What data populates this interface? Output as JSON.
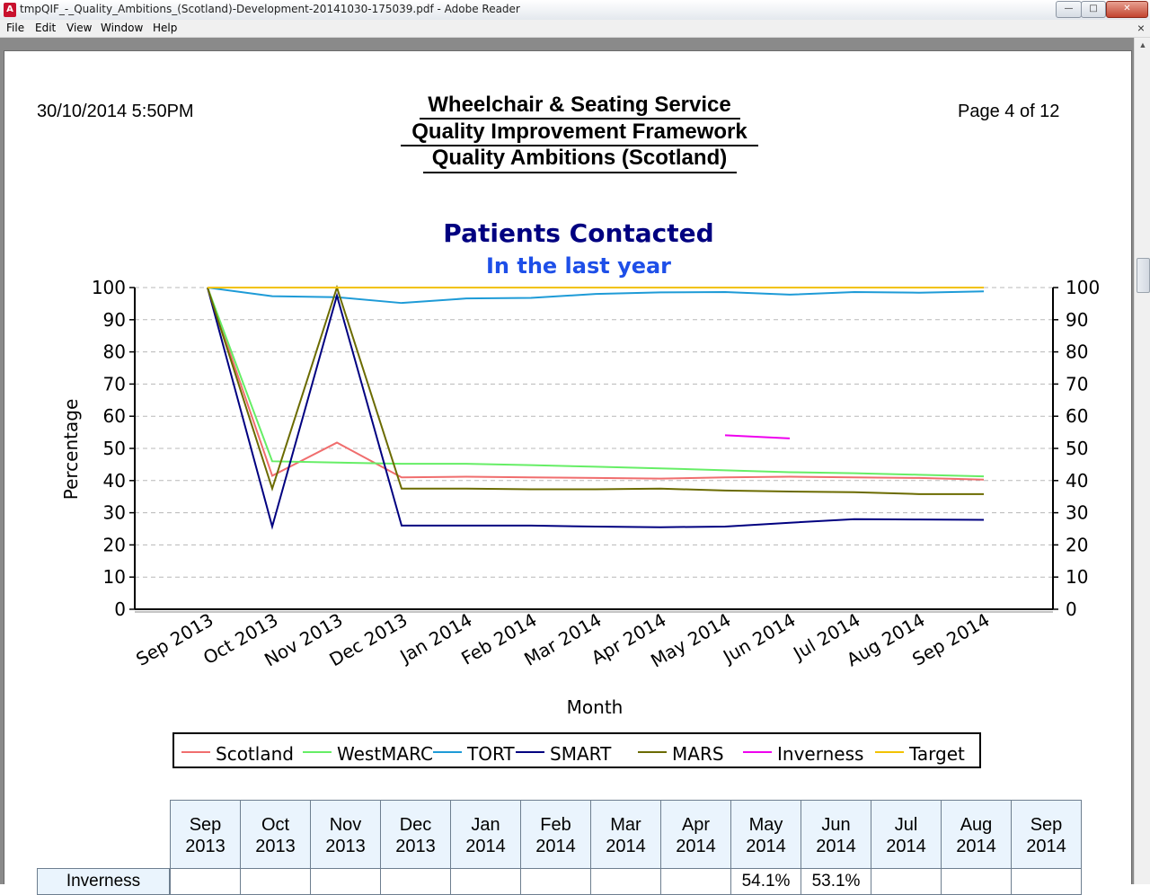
{
  "window": {
    "title": "tmpQIF_-_Quality_Ambitions_(Scotland)-Development-20141030-175039.pdf - Adobe Reader",
    "buttons": {
      "minimize": "—",
      "maximize": "□",
      "close": "✕"
    }
  },
  "menu": {
    "items": [
      "File",
      "Edit",
      "View",
      "Window",
      "Help"
    ],
    "close_glyph": "×"
  },
  "report": {
    "date": "30/10/2014 5:50PM",
    "page": "Page 4 of 12",
    "title_lines": [
      "Wheelchair & Seating Service",
      "Quality Improvement Framework",
      "Quality Ambitions (Scotland)"
    ]
  },
  "chart_data": {
    "type": "line",
    "title": "Patients Contacted",
    "subtitle": "In the last year",
    "xlabel": "Month",
    "ylabel": "Percentage",
    "ylim": [
      0,
      100
    ],
    "yticks": [
      0,
      10,
      20,
      30,
      40,
      50,
      60,
      70,
      80,
      90,
      100
    ],
    "grid": true,
    "legend_position": "bottom",
    "x": [
      "Sep 2013",
      "Oct 2013",
      "Nov 2013",
      "Dec 2013",
      "Jan 2014",
      "Feb 2014",
      "Mar 2014",
      "Apr 2014",
      "May 2014",
      "Jun 2014",
      "Jul 2014",
      "Aug 2014",
      "Sep 2014"
    ],
    "series": [
      {
        "name": "Scotland",
        "color": "#f06e6e",
        "values": [
          100,
          41.5,
          51.8,
          41.0,
          41.2,
          41.0,
          40.8,
          40.6,
          41.0,
          41.2,
          41.0,
          40.8,
          40.3
        ]
      },
      {
        "name": "WestMARC",
        "color": "#66ee66",
        "values": [
          100,
          46.0,
          45.6,
          45.2,
          45.2,
          44.8,
          44.3,
          43.8,
          43.2,
          42.6,
          42.3,
          41.8,
          41.3
        ]
      },
      {
        "name": "TORT",
        "color": "#1e9bd7",
        "values": [
          100,
          97.3,
          97.0,
          95.2,
          96.6,
          96.8,
          98.0,
          98.5,
          98.6,
          97.8,
          98.6,
          98.4,
          98.8
        ]
      },
      {
        "name": "SMART",
        "color": "#000080",
        "values": [
          100,
          25.7,
          97.5,
          26.0,
          26.0,
          26.0,
          25.7,
          25.5,
          25.7,
          26.9,
          28.0,
          27.9,
          27.8
        ]
      },
      {
        "name": "MARS",
        "color": "#6b6b00",
        "values": [
          100,
          37.5,
          100,
          37.5,
          37.5,
          37.3,
          37.3,
          37.5,
          36.9,
          36.6,
          36.4,
          35.8,
          35.8
        ]
      },
      {
        "name": "Inverness",
        "color": "#ee00ee",
        "values": [
          null,
          null,
          null,
          null,
          null,
          null,
          null,
          null,
          54.1,
          53.1,
          null,
          null,
          null
        ]
      },
      {
        "name": "Target",
        "color": "#f2c200",
        "values": [
          100,
          100,
          100,
          100,
          100,
          100,
          100,
          100,
          100,
          100,
          100,
          100,
          100
        ]
      }
    ]
  },
  "table": {
    "headers": [
      [
        "Sep",
        "2013"
      ],
      [
        "Oct",
        "2013"
      ],
      [
        "Nov",
        "2013"
      ],
      [
        "Dec",
        "2013"
      ],
      [
        "Jan",
        "2014"
      ],
      [
        "Feb",
        "2014"
      ],
      [
        "Mar",
        "2014"
      ],
      [
        "Apr",
        "2014"
      ],
      [
        "May",
        "2014"
      ],
      [
        "Jun",
        "2014"
      ],
      [
        "Jul",
        "2014"
      ],
      [
        "Aug",
        "2014"
      ],
      [
        "Sep",
        "2014"
      ]
    ],
    "rows": [
      {
        "label": "Inverness",
        "cells": [
          "",
          "",
          "",
          "",
          "",
          "",
          "",
          "",
          "54.1%",
          "53.1%",
          "",
          "",
          ""
        ]
      }
    ]
  }
}
